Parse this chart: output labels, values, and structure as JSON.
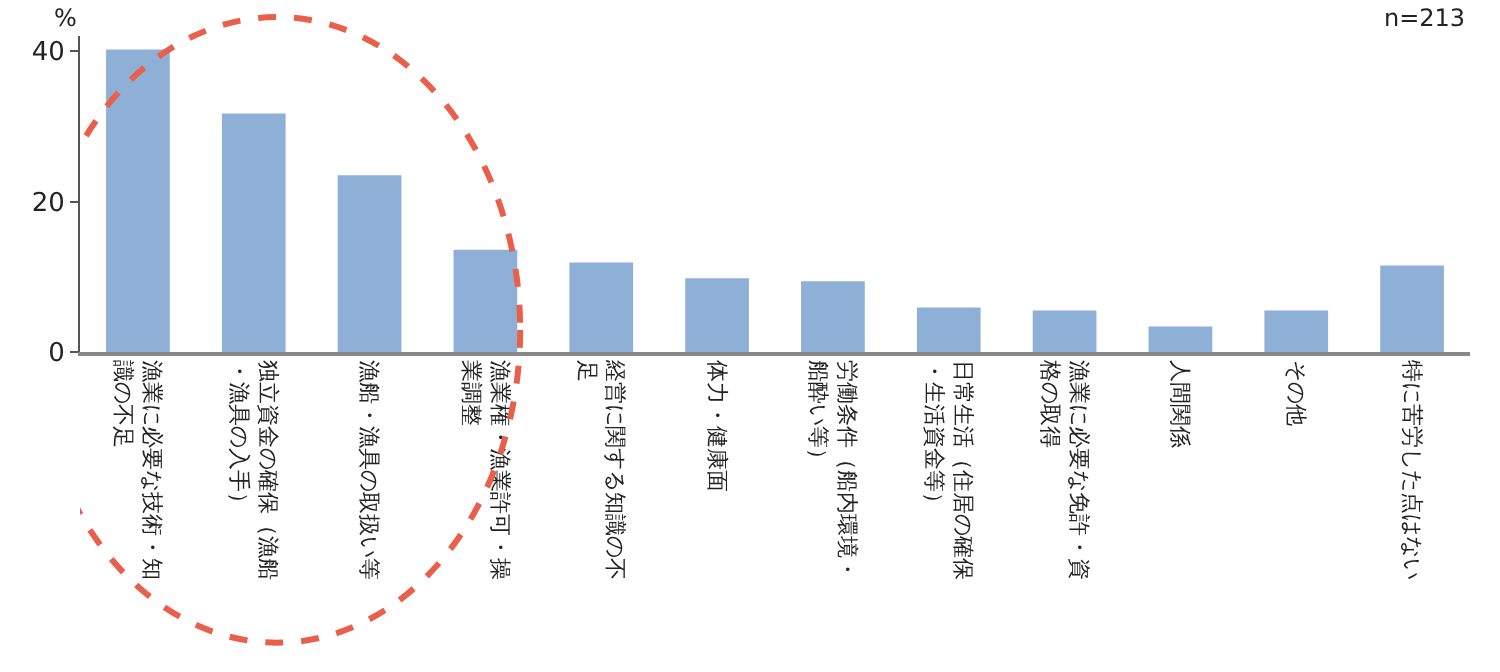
{
  "chart_data": {
    "type": "bar",
    "ylabel": "%",
    "annotations": [
      "n=213"
    ],
    "categories": [
      "漁業に必要な技術・知識の不足",
      "独立資金の確保（漁船・漁具の入手）",
      "漁船・漁具の取扱い等",
      "漁業権・漁業許可・操業調整",
      "経営に関する知識の不足",
      "体力・健康面",
      "労働条件（船内環境・船酔い等）",
      "日常生活（住居の確保・生活資金等）",
      "漁業に必要な免許・資格の取得",
      "人間関係",
      "その他",
      "特に苦労した点はない"
    ],
    "values": [
      40.2,
      31.7,
      23.5,
      13.6,
      11.9,
      9.8,
      9.4,
      5.9,
      5.5,
      3.4,
      5.5,
      11.5
    ],
    "color": "#8fb0d6",
    "ylim": [
      0,
      42
    ],
    "yticks": [
      0,
      20,
      40
    ]
  }
}
